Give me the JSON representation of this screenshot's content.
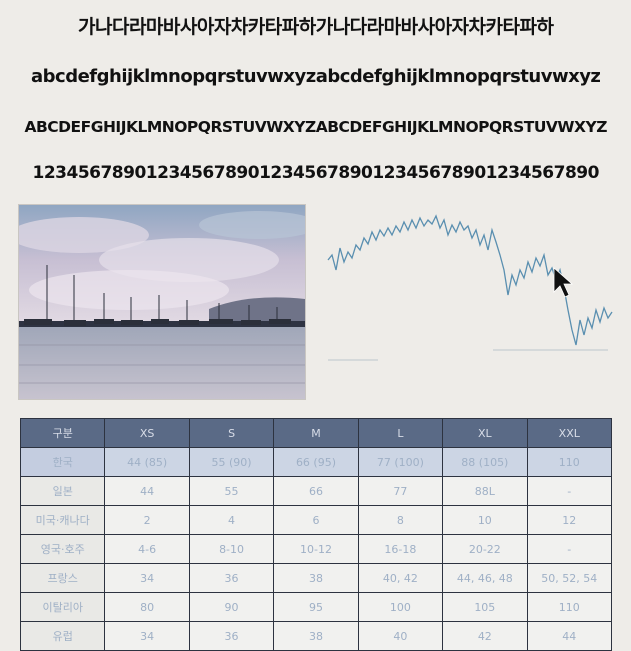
{
  "text_lines": {
    "korean": "가나다라마바사아자차카타파하가나다라마바사아자차카타파하",
    "lowercase": "abcdefghijklmnopqrstuvwxyzabcdefghijklmnopqrstuvwxyz",
    "uppercase": "ABCDEFGHIJKLMNOPQRSTUVWXYZABCDEFGHIJKLMNOPQRSTUVWXYZ",
    "digits": "12345678901234567890123456789012345678901234567890"
  },
  "photo": {
    "icon": "harbor-sailboats-photo"
  },
  "line_chart": {
    "icon": "stock-price-line",
    "cursor_icon": "mouse-pointer-icon",
    "colors": {
      "line": "#5a8fb0",
      "axis": "#bcc6cc",
      "cursor": "#111111"
    }
  },
  "size_table": {
    "headers": [
      "구분",
      "XS",
      "S",
      "M",
      "L",
      "XL",
      "XXL"
    ],
    "rows": [
      {
        "label": "한국",
        "values": [
          "44 (85)",
          "55 (90)",
          "66 (95)",
          "77 (100)",
          "88 (105)",
          "110"
        ]
      },
      {
        "label": "일본",
        "values": [
          "44",
          "55",
          "66",
          "77",
          "88L",
          "-"
        ]
      },
      {
        "label": "미국·캐나다",
        "values": [
          "2",
          "4",
          "6",
          "8",
          "10",
          "12"
        ]
      },
      {
        "label": "영국·호주",
        "values": [
          "4-6",
          "8-10",
          "10-12",
          "16-18",
          "20-22",
          "-"
        ]
      },
      {
        "label": "프랑스",
        "values": [
          "34",
          "36",
          "38",
          "40, 42",
          "44, 46, 48",
          "50, 52, 54"
        ]
      },
      {
        "label": "이탈리아",
        "values": [
          "80",
          "90",
          "95",
          "100",
          "105",
          "110"
        ]
      },
      {
        "label": "유럽",
        "values": [
          "34",
          "36",
          "38",
          "40",
          "42",
          "44"
        ]
      }
    ]
  },
  "colors": {
    "background": "#eeece8",
    "table_header": "#5a6a86",
    "table_header_text": "#d8dde8",
    "table_cell_text": "#9fb0c6",
    "highlight_row": "#ccd5e4"
  }
}
